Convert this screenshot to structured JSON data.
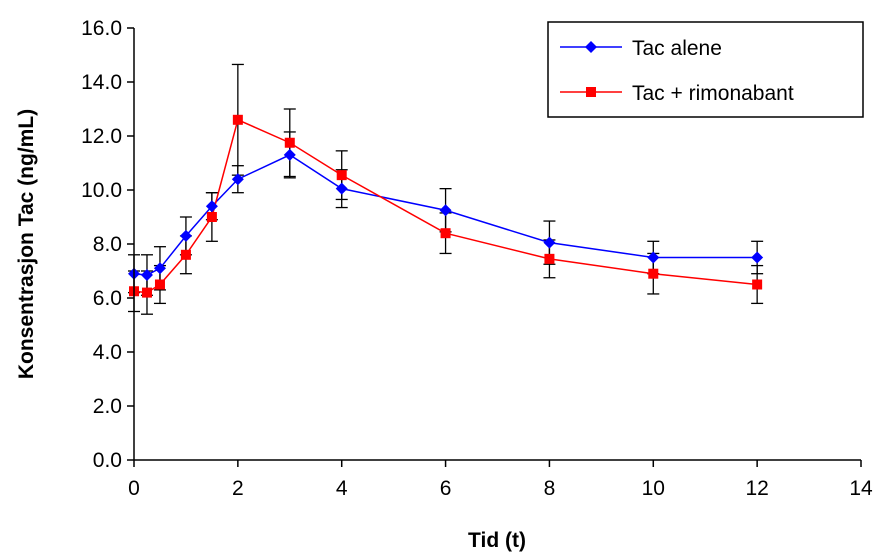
{
  "chart_data": {
    "type": "line",
    "xlabel": "Tid (t)",
    "ylabel": "Konsentrasjon Tac (ng/mL)",
    "xlim": [
      0,
      14
    ],
    "ylim": [
      0,
      16
    ],
    "x_ticks": [
      "0",
      "2",
      "4",
      "6",
      "8",
      "10",
      "12",
      "14"
    ],
    "y_ticks": [
      "0.0",
      "2.0",
      "4.0",
      "6.0",
      "8.0",
      "10.0",
      "12.0",
      "14.0",
      "16.0"
    ],
    "grid": false,
    "legend_position": "top-right",
    "series": [
      {
        "name": "Tac alene",
        "color": "#0000ff",
        "marker": "diamond",
        "x": [
          0,
          0.25,
          0.5,
          1,
          1.5,
          2,
          3,
          4,
          6,
          8,
          10,
          12
        ],
        "y": [
          6.9,
          6.85,
          7.1,
          8.3,
          9.4,
          10.4,
          11.3,
          10.05,
          9.25,
          8.05,
          7.5,
          7.5
        ],
        "error": [
          0.7,
          0.75,
          0.8,
          0.7,
          0.5,
          0.5,
          0.85,
          0.7,
          0.8,
          0.8,
          0.6,
          0.6
        ]
      },
      {
        "name": "Tac + rimonabant",
        "color": "#ff0000",
        "marker": "square",
        "x": [
          0,
          0.25,
          0.5,
          1,
          1.5,
          2,
          3,
          4,
          6,
          8,
          10,
          12
        ],
        "y": [
          6.25,
          6.2,
          6.5,
          7.6,
          9.0,
          12.6,
          11.75,
          10.55,
          8.4,
          7.45,
          6.9,
          6.5
        ],
        "error": [
          0.75,
          0.8,
          0.7,
          0.7,
          0.9,
          2.05,
          1.25,
          0.9,
          0.75,
          0.7,
          0.75,
          0.7
        ]
      }
    ]
  }
}
